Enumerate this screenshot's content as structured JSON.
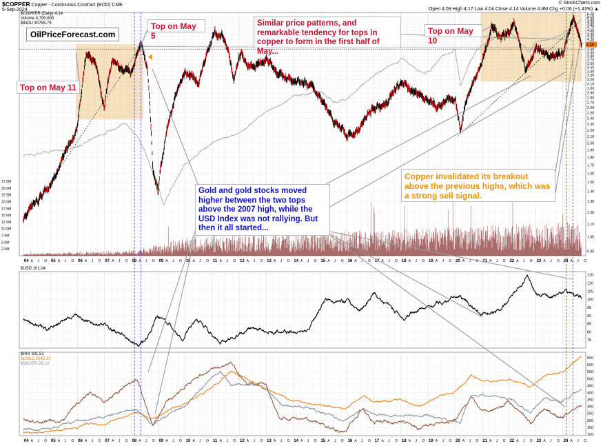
{
  "header": {
    "symbol": "$COPPER",
    "subtitle": "Copper - Continuous Contract (EOD)  CME",
    "date": "5-Sep-2024",
    "credit": "© StockCharts.com",
    "quote_line": "Open 4.09  High 4.17  Low 4.04  Close 4.14  Volume 4.8M  Chg +0.06 (+1.43%) ▲",
    "legend": [
      "$COPPER (Daily) 4.14",
      "Volume 4,790,600",
      "$INDU 40755.75"
    ],
    "usd_legend": "$USD 101.04",
    "gold_legend": [
      "$HUI 301.51",
      "$GOLD 2542.10",
      "$SILVER 29.10"
    ]
  },
  "site": "OilPriceForecast.com",
  "annotations": {
    "top_may11": "Top on May 11",
    "top_may5": "Top on May 5",
    "top_may10": "Top on May 10",
    "similar": "Similar price patterns, and remarkable tendency for tops in copper to form in the first half of May...",
    "gold": "Gold and gold stocks moved higher between the two tops above the 2007 high, while the USD Index was not rallying. But then it all started...",
    "copper": "Copper invalidated its breakout above the previous highs, which was a strong sell signal."
  },
  "colors": {
    "copper": "#000000",
    "copper_down": "#cc0000",
    "indu": "#a6a6a6",
    "volume": "#8e3a3a",
    "usd": "#000000",
    "hui": "#8b4a2b",
    "gold": "#f07a10",
    "silver": "#7f8c94",
    "box": "#f4d8aa",
    "red_text": "#c8102e",
    "blue_text": "#1010c8",
    "orange_text": "#f0900a"
  },
  "chart_data": [
    {
      "type": "line",
      "name": "copper",
      "x_years": [
        2004.0,
        2005.0,
        2006.0,
        2006.35,
        2006.7,
        2007.0,
        2007.3,
        2007.6,
        2008.0,
        2008.35,
        2008.6,
        2008.8,
        2009.0,
        2009.3,
        2009.6,
        2010.0,
        2010.5,
        2011.1,
        2011.5,
        2011.8,
        2012.1,
        2012.5,
        2013.0,
        2013.5,
        2014.0,
        2014.5,
        2015.0,
        2015.5,
        2016.0,
        2016.4,
        2016.9,
        2017.5,
        2018.0,
        2018.5,
        2019.0,
        2019.5,
        2020.0,
        2020.2,
        2020.5,
        2021.0,
        2021.35,
        2021.8,
        2022.2,
        2022.6,
        2023.0,
        2023.5,
        2024.0,
        2024.38,
        2024.7
      ],
      "y": [
        1.15,
        1.45,
        2.2,
        3.95,
        3.5,
        2.55,
        3.7,
        3.55,
        3.3,
        4.1,
        3.5,
        1.6,
        1.4,
        2.2,
        2.8,
        3.3,
        3.1,
        4.55,
        4.35,
        3.2,
        3.9,
        3.45,
        3.7,
        3.3,
        3.3,
        3.1,
        2.8,
        2.4,
        2.1,
        2.15,
        2.6,
        2.7,
        3.2,
        2.9,
        2.7,
        2.7,
        2.8,
        2.15,
        2.9,
        3.5,
        4.75,
        4.4,
        4.8,
        3.4,
        4.1,
        3.8,
        3.8,
        5.1,
        4.14
      ],
      "xlim": [
        2003.85,
        2024.85
      ],
      "ylim": [
        0.87,
        5.25
      ],
      "scale": "log",
      "y_ticks": [
        0.9,
        1.0,
        1.1,
        1.2,
        1.3,
        1.4,
        1.5,
        1.6,
        1.7,
        1.8,
        1.9,
        2.0,
        2.1,
        2.2,
        2.3,
        2.4,
        2.5,
        2.6,
        2.7,
        2.8,
        2.9,
        3.0,
        3.1,
        3.2,
        3.3,
        3.4,
        3.5,
        3.6,
        3.7,
        3.8,
        3.9,
        4.0,
        4.1,
        4.2,
        4.3,
        4.4,
        4.5,
        4.6,
        4.7,
        4.8,
        4.9,
        5.0,
        5.1,
        5.2
      ],
      "y_tick_labels": [
        "0.90",
        "1.00",
        "1.10",
        "1.20",
        "1.30",
        "1.40",
        "1.50",
        "1.60",
        "1.70",
        "1.80",
        "1.90",
        "2.00",
        "2.10",
        "2.20",
        "2.30",
        "2.40",
        "2.50",
        "2.60",
        "2.70",
        "2.80",
        "2.90",
        "3.00",
        "3.10",
        "3.20",
        "3.30",
        "3.40",
        "3.50",
        "3.60",
        "3.70",
        "3.80",
        "3.90",
        "4.00",
        "4.10",
        "4.20",
        "4.30",
        "4.40",
        "4.50",
        "4.60",
        "4.70",
        "4.80",
        "4.90",
        "5.00",
        "5.10",
        "5.20"
      ],
      "last": "4.14"
    },
    {
      "type": "line",
      "name": "indu",
      "x_years": [
        2004.0,
        2005.0,
        2006.0,
        2007.0,
        2007.8,
        2008.5,
        2009.2,
        2010.0,
        2011.0,
        2012.0,
        2013.0,
        2014.0,
        2015.0,
        2015.6,
        2016.0,
        2017.0,
        2018.0,
        2018.9,
        2019.5,
        2020.0,
        2020.2,
        2020.6,
        2021.0,
        2022.0,
        2022.75,
        2023.0,
        2024.0,
        2024.7
      ],
      "y": [
        1.82,
        1.88,
        1.95,
        2.15,
        2.3,
        1.9,
        1.28,
        1.7,
        2.0,
        2.15,
        2.5,
        2.8,
        2.95,
        2.7,
        2.8,
        3.3,
        3.7,
        3.3,
        3.8,
        4.0,
        3.05,
        3.7,
        4.1,
        4.6,
        3.9,
        4.2,
        4.5,
        4.95
      ]
    },
    {
      "type": "bar",
      "name": "volume",
      "y_ticks": [
        2500000,
        5000000,
        7500000,
        10000000,
        12500000,
        15000000,
        17500000,
        20000000,
        22500000,
        25000000,
        27500000
      ],
      "y_tick_labels": [
        "2.5M",
        "5.0M",
        "7.5M",
        "10.0M",
        "12.5M",
        "15.0M",
        "17.5M",
        "20.0M",
        "22.5M",
        "25.0M",
        "27.5M"
      ],
      "ylim": [
        0,
        28000000
      ],
      "x_years": [
        2004,
        2006,
        2008,
        2009,
        2010,
        2012,
        2014,
        2016,
        2018,
        2020,
        2021,
        2022,
        2023,
        2024,
        2024.7
      ],
      "y": [
        500000,
        800000,
        1200000,
        2500000,
        4000000,
        4500000,
        5200000,
        5800000,
        6000000,
        6500000,
        6800000,
        7000000,
        7200000,
        7500000,
        8000000
      ]
    },
    {
      "type": "line",
      "name": "usd",
      "x_years": [
        2004.0,
        2004.9,
        2005.9,
        2006.5,
        2007.0,
        2007.5,
        2008.3,
        2008.6,
        2008.9,
        2009.2,
        2009.9,
        2010.4,
        2011.3,
        2011.6,
        2012.5,
        2013.0,
        2014.0,
        2014.5,
        2015.2,
        2016.0,
        2016.5,
        2017.0,
        2018.1,
        2019.0,
        2020.2,
        2021.0,
        2021.6,
        2022.7,
        2023.0,
        2023.5,
        2024.0,
        2024.7
      ],
      "y": [
        88,
        81,
        91,
        86,
        84,
        80,
        72,
        76,
        88,
        89,
        75,
        88,
        73,
        75,
        83,
        80,
        80,
        80,
        99,
        99,
        93,
        103,
        89,
        96,
        102,
        90,
        92,
        114,
        103,
        101,
        105,
        101.04
      ],
      "ylim": [
        70,
        117
      ],
      "y_ticks": [
        75,
        80,
        85,
        90,
        95,
        100,
        105,
        110,
        115
      ],
      "y_tick_labels": [
        "75",
        "80",
        "85",
        "90",
        "95",
        "100",
        "105",
        "110",
        "115"
      ]
    },
    {
      "type": "line",
      "name": "gold",
      "x_years": [
        2004.0,
        2005.0,
        2006.0,
        2006.5,
        2007.0,
        2008.2,
        2008.8,
        2009.5,
        2010.0,
        2011.0,
        2011.7,
        2012.0,
        2012.5,
        2013.0,
        2013.6,
        2014.0,
        2015.0,
        2015.9,
        2016.6,
        2017.0,
        2018.0,
        2018.7,
        2019.5,
        2020.0,
        2020.6,
        2021.0,
        2022.0,
        2022.8,
        2023.3,
        2024.0,
        2024.7
      ],
      "y": [
        110,
        120,
        150,
        180,
        170,
        260,
        210,
        280,
        320,
        430,
        560,
        520,
        480,
        430,
        380,
        340,
        310,
        280,
        380,
        330,
        350,
        300,
        380,
        410,
        520,
        480,
        490,
        440,
        520,
        550,
        660
      ],
      "ylim": [
        90,
        690
      ],
      "y_ticks": [
        100,
        150,
        200,
        250,
        300,
        350,
        400,
        450,
        500,
        550,
        600,
        650
      ],
      "y_tick_labels": [
        "100",
        "150",
        "200",
        "250",
        "300",
        "350",
        "400",
        "450",
        "500",
        "550",
        "600",
        "650"
      ]
    },
    {
      "type": "line",
      "name": "hui",
      "x_years": [
        2004.0,
        2004.5,
        2005.5,
        2006.0,
        2006.5,
        2007.0,
        2008.2,
        2008.8,
        2009.3,
        2010.0,
        2011.0,
        2011.7,
        2012.3,
        2013.0,
        2013.5,
        2014.5,
        2015.9,
        2016.6,
        2017.0,
        2018.0,
        2018.7,
        2019.5,
        2020.0,
        2020.6,
        2021.0,
        2022.0,
        2022.8,
        2023.3,
        2024.0,
        2024.7
      ],
      "y": [
        210,
        190,
        200,
        320,
        400,
        340,
        500,
        160,
        330,
        450,
        570,
        600,
        470,
        450,
        210,
        220,
        110,
        290,
        190,
        190,
        140,
        190,
        200,
        370,
        260,
        330,
        180,
        280,
        220,
        301.51
      ]
    },
    {
      "type": "line",
      "name": "silver",
      "x_years": [
        2004.0,
        2005.0,
        2006.0,
        2007.0,
        2008.2,
        2008.8,
        2009.5,
        2010.0,
        2011.3,
        2011.7,
        2012.5,
        2013.0,
        2013.6,
        2014.5,
        2015.9,
        2016.6,
        2017.0,
        2018.0,
        2019.0,
        2020.2,
        2020.6,
        2021.0,
        2022.0,
        2022.8,
        2023.3,
        2024.0,
        2024.7
      ],
      "y": [
        130,
        140,
        200,
        220,
        280,
        170,
        260,
        310,
        560,
        450,
        460,
        420,
        310,
        290,
        200,
        280,
        240,
        230,
        240,
        180,
        380,
        380,
        360,
        260,
        360,
        340,
        420
      ]
    }
  ],
  "x_axis": {
    "labels": [
      "04",
      "A",
      "J",
      "O",
      "05",
      "A",
      "J",
      "O",
      "06",
      "A",
      "J",
      "O",
      "07",
      "A",
      "J",
      "O",
      "08",
      "A",
      "J",
      "O",
      "09",
      "A",
      "J",
      "O",
      "10",
      "A",
      "J",
      "O",
      "11",
      "A",
      "J",
      "O",
      "12",
      "A",
      "J",
      "O",
      "13",
      "A",
      "J",
      "O",
      "14",
      "A",
      "J",
      "O",
      "15",
      "A",
      "J",
      "O",
      "16",
      "A",
      "J",
      "O",
      "17",
      "A",
      "J",
      "O",
      "18",
      "A",
      "J",
      "O",
      "19",
      "A",
      "J",
      "O",
      "20",
      "A",
      "J",
      "O",
      "21",
      "A",
      "J",
      "O",
      "22",
      "A",
      "J",
      "O",
      "23",
      "A",
      "J",
      "O",
      "24",
      "A",
      "J",
      "O"
    ]
  }
}
